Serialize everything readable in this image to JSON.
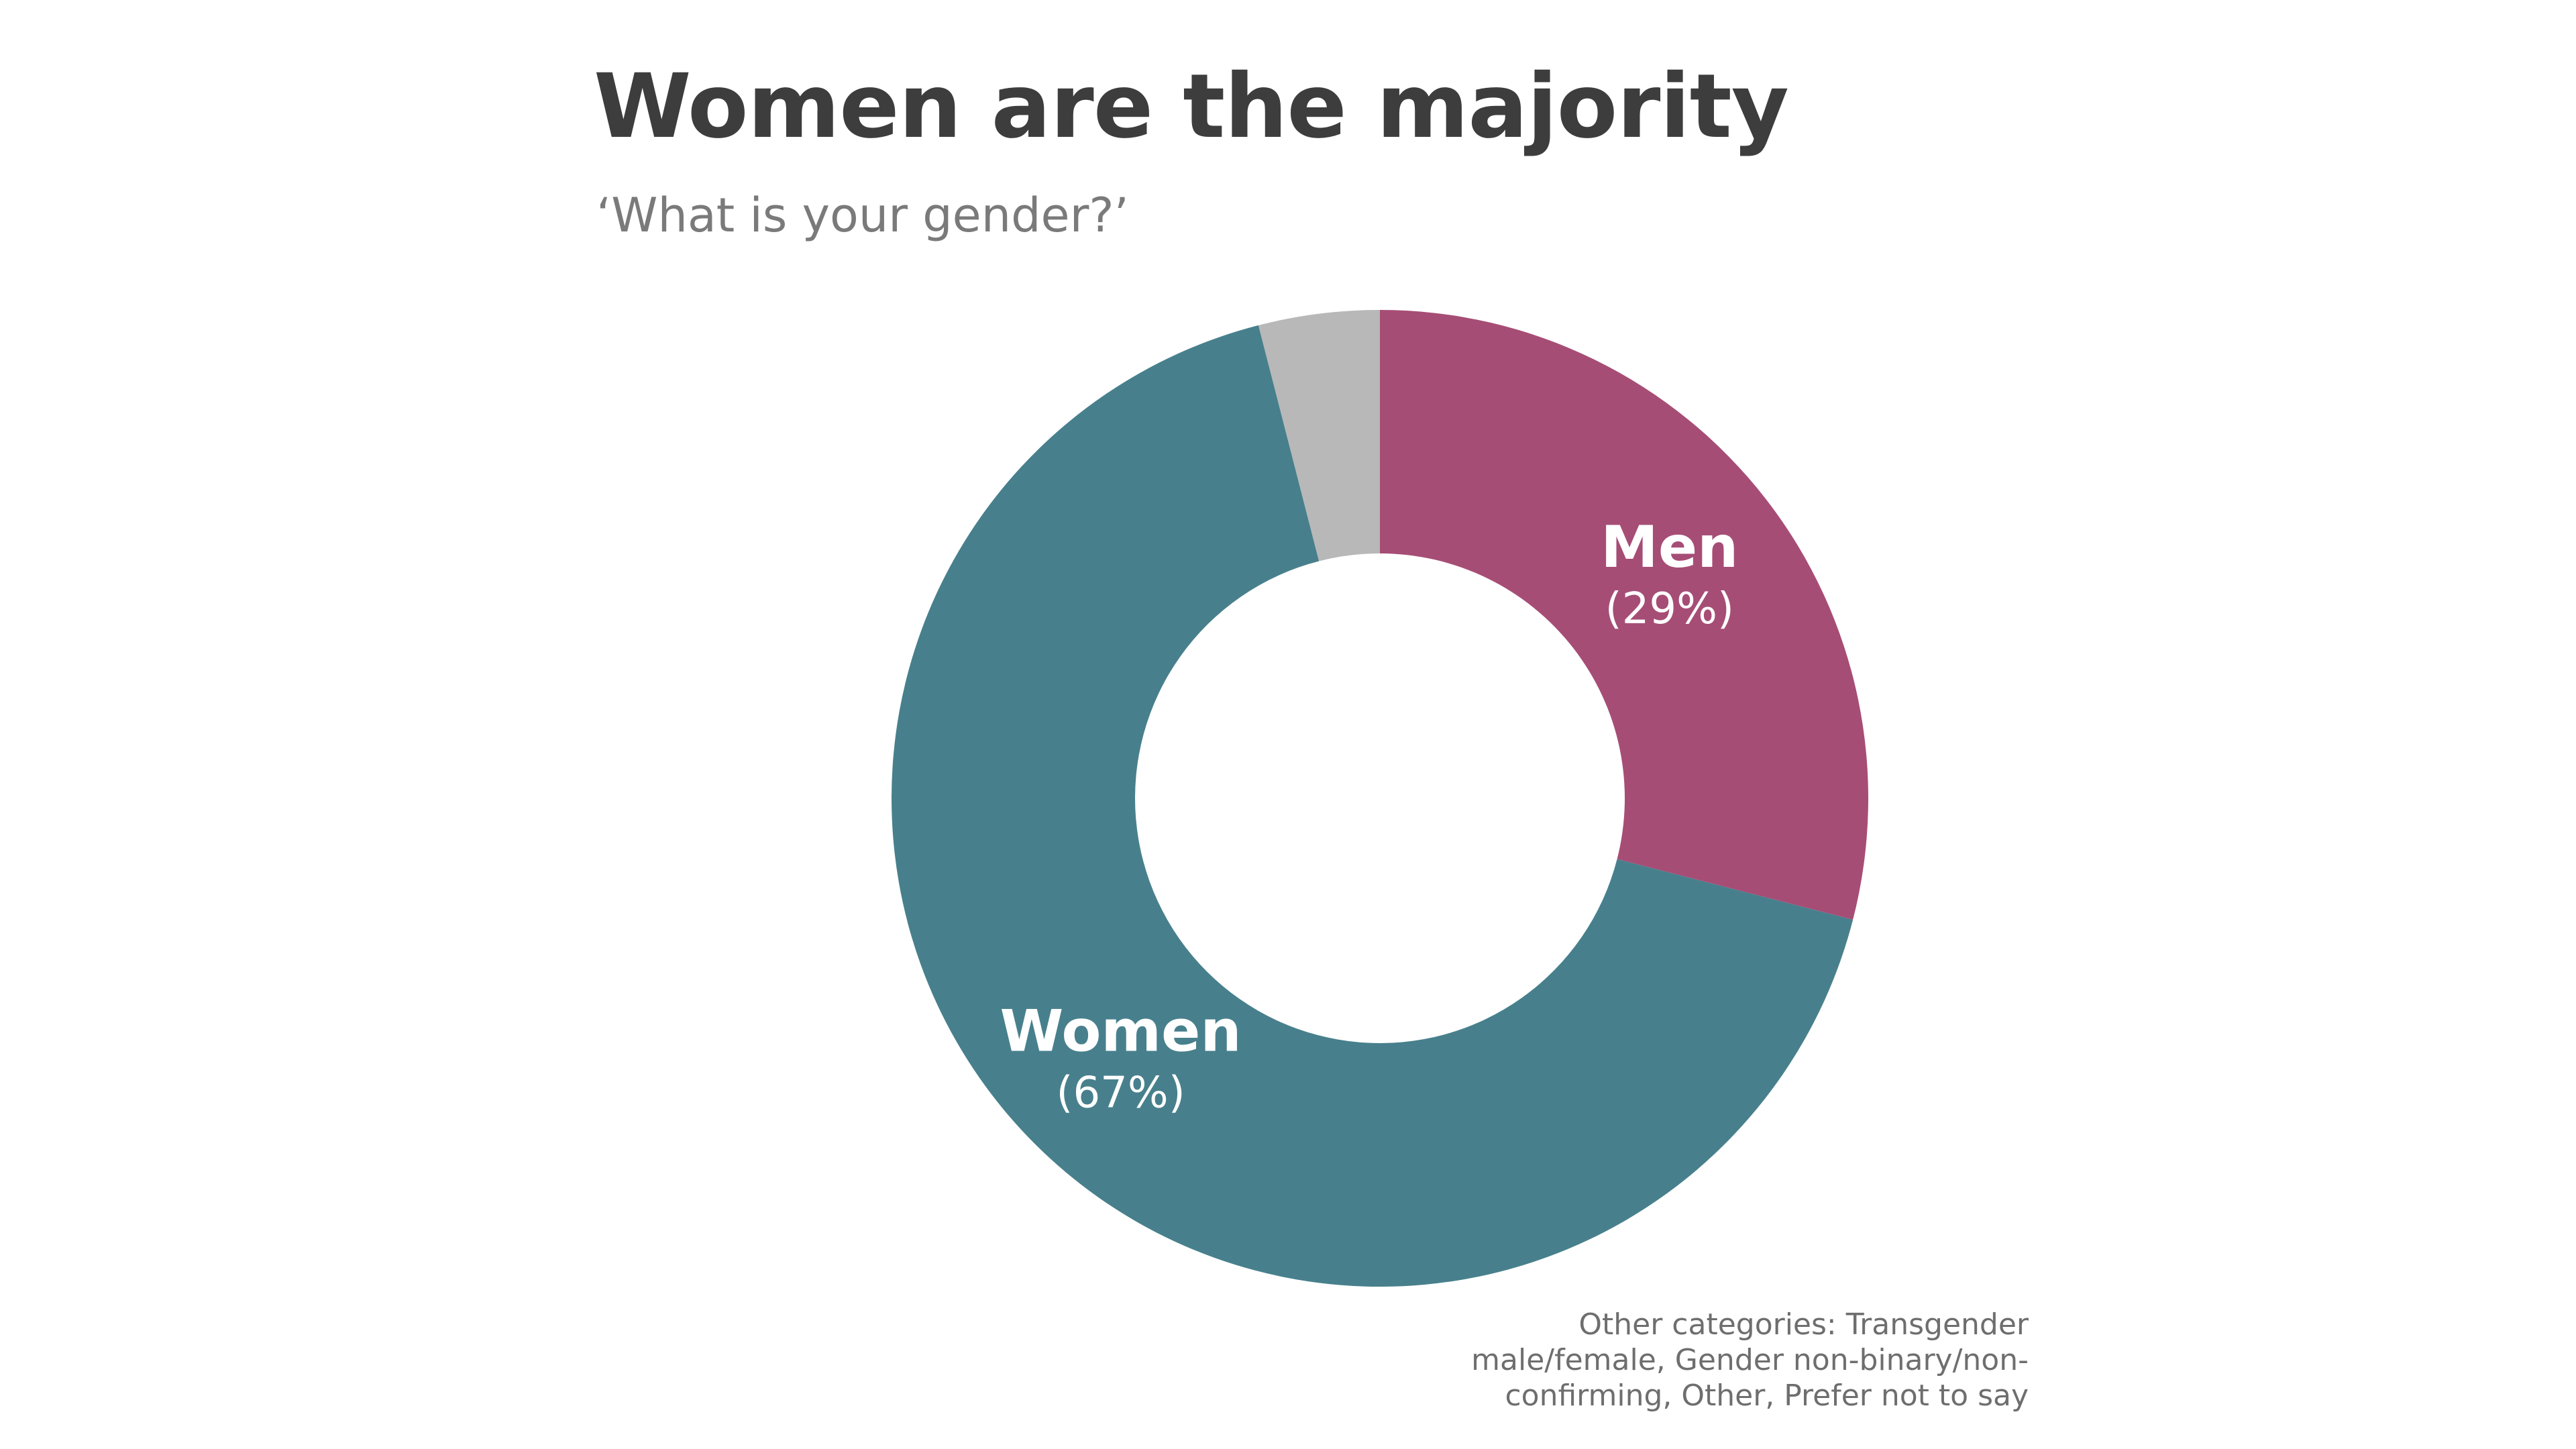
{
  "chart_data": {
    "type": "pie",
    "donut": true,
    "title": "Women are the majority",
    "subtitle": "‘What is your gender?’",
    "slices": [
      {
        "label": "Men",
        "value": 29,
        "value_label": "(29%)",
        "color": "#a64d76",
        "labeled": true
      },
      {
        "label": "Women",
        "value": 67,
        "value_label": "(67%)",
        "color": "#47808c",
        "labeled": true
      },
      {
        "label": "",
        "value": 4,
        "value_label": "",
        "color": "#b8b8b8",
        "labeled": false
      }
    ],
    "footnote": "Other categories: Transgender male/female, Gender non-binary/non-confirming, Other, Prefer not to say"
  }
}
